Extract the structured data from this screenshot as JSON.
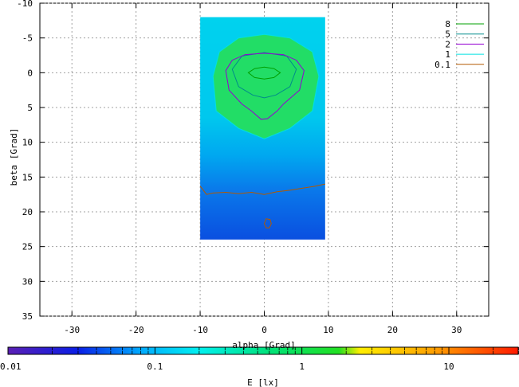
{
  "chart_data": [
    {
      "type": "heatmap",
      "title": "",
      "xlabel": "alpha [Grad]",
      "ylabel": "beta [Grad]",
      "xlim": [
        -35,
        35
      ],
      "ylim": [
        -10,
        35
      ],
      "y_reversed": true,
      "x_ticks": [
        -30,
        -20,
        -10,
        0,
        10,
        20,
        30
      ],
      "y_ticks": [
        -10,
        -5,
        0,
        5,
        10,
        15,
        20,
        25,
        30,
        35
      ],
      "grid": true,
      "legend_position": "top-right",
      "data_extent": {
        "alpha": [
          -10,
          9.5
        ],
        "beta": [
          -8,
          24
        ]
      },
      "contour_levels": [
        {
          "name": "8",
          "value": 8,
          "color": "#00a000"
        },
        {
          "name": "5",
          "value": 5,
          "color": "#008b8b"
        },
        {
          "name": "2",
          "value": 2,
          "color": "#9400d3"
        },
        {
          "name": "1",
          "value": 1,
          "color": "#00e0e0"
        },
        {
          "name": "0.1",
          "value": 0.1,
          "color": "#b35900"
        }
      ],
      "contours": [
        {
          "level": "8",
          "points": [
            [
              -2.5,
              0
            ],
            [
              -1.5,
              -0.6
            ],
            [
              0,
              -0.8
            ],
            [
              1.5,
              -0.6
            ],
            [
              2.5,
              0
            ],
            [
              1.5,
              0.7
            ],
            [
              0,
              0.9
            ],
            [
              -1.5,
              0.7
            ]
          ]
        },
        {
          "level": "5",
          "points": [
            [
              -5,
              -0.5
            ],
            [
              -3.5,
              -2.4
            ],
            [
              0,
              -2.9
            ],
            [
              3.5,
              -2.4
            ],
            [
              5,
              -0.5
            ],
            [
              4,
              2
            ],
            [
              1.8,
              3.2
            ],
            [
              0,
              3.6
            ],
            [
              -1.8,
              3.2
            ],
            [
              -4,
              2
            ]
          ]
        },
        {
          "level": "2",
          "points": [
            [
              -6,
              -0.3
            ],
            [
              -5,
              -1.8
            ],
            [
              -3,
              -2.6
            ],
            [
              0,
              -2.8
            ],
            [
              3,
              -2.6
            ],
            [
              5,
              -1.8
            ],
            [
              6.2,
              -0.3
            ],
            [
              5.5,
              2.5
            ],
            [
              3,
              4.5
            ],
            [
              2,
              5.5
            ],
            [
              0.5,
              6.6
            ],
            [
              -0.5,
              6.7
            ],
            [
              -2,
              5.5
            ],
            [
              -3.5,
              4.5
            ],
            [
              -5.5,
              2.5
            ]
          ]
        },
        {
          "level": "1",
          "points": [
            [
              -8,
              0.5
            ],
            [
              -7,
              -3
            ],
            [
              -4,
              -5
            ],
            [
              0,
              -5.5
            ],
            [
              4,
              -5
            ],
            [
              7.5,
              -3
            ],
            [
              8.5,
              0.5
            ],
            [
              7.5,
              5.5
            ],
            [
              4,
              8
            ],
            [
              0,
              9.5
            ],
            [
              -4,
              8
            ],
            [
              -7.5,
              5.5
            ]
          ]
        },
        {
          "level": "0.1",
          "points": [
            [
              -10,
              16.3
            ],
            [
              -9,
              17.5
            ],
            [
              -8,
              17.3
            ],
            [
              -6,
              17.2
            ],
            [
              -4,
              17.4
            ],
            [
              -2,
              17.2
            ],
            [
              0,
              17.5
            ],
            [
              2,
              17.1
            ],
            [
              4,
              16.9
            ],
            [
              6,
              16.6
            ],
            [
              8,
              16.3
            ],
            [
              9.5,
              16
            ]
          ]
        },
        {
          "level": "0.1",
          "points": [
            [
              0.3,
              21
            ],
            [
              0.9,
              21.1
            ],
            [
              1.1,
              21.7
            ],
            [
              0.8,
              22.3
            ],
            [
              0.3,
              22.3
            ],
            [
              0,
              21.7
            ]
          ]
        }
      ]
    },
    {
      "type": "heatmap",
      "role": "colorbar",
      "xlabel": "E [lx]",
      "scale": "log",
      "range": [
        0.01,
        30
      ],
      "tick_labels": [
        "0.01",
        "0.1",
        "1",
        "10"
      ],
      "colormap": [
        {
          "value": 0.01,
          "color": "#5a1fb4"
        },
        {
          "value": 0.03,
          "color": "#0a1ee6"
        },
        {
          "value": 0.08,
          "color": "#00aaff"
        },
        {
          "value": 0.2,
          "color": "#00f0f0"
        },
        {
          "value": 0.6,
          "color": "#00e27a"
        },
        {
          "value": 1.8,
          "color": "#22e022"
        },
        {
          "value": 2.5,
          "color": "#ffee00"
        },
        {
          "value": 8,
          "color": "#ffa000"
        },
        {
          "value": 30,
          "color": "#ff1a00"
        }
      ]
    }
  ]
}
